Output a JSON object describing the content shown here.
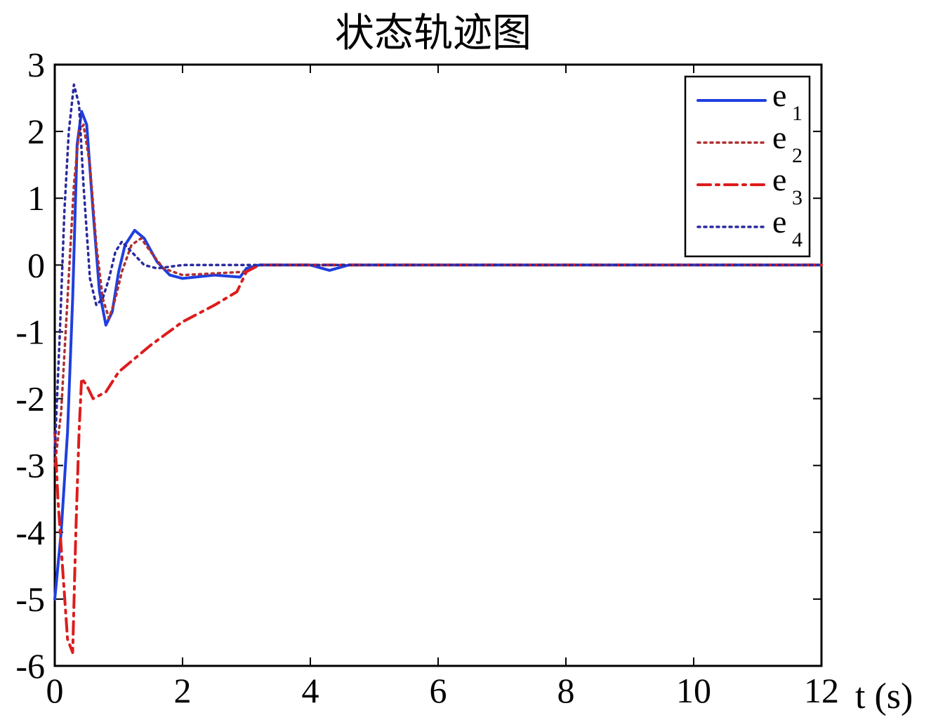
{
  "chart_data": {
    "type": "line",
    "title": "状态轨迹图",
    "xlabel": "t (s)",
    "ylabel": "",
    "xlim": [
      0,
      12
    ],
    "ylim": [
      -6,
      3
    ],
    "xticks": [
      0,
      2,
      4,
      6,
      8,
      10,
      12
    ],
    "yticks": [
      -6,
      -5,
      -4,
      -3,
      -2,
      -1,
      0,
      1,
      2,
      3
    ],
    "grid": false,
    "legend_position": "top-right",
    "series": [
      {
        "name": "e1",
        "color": "#1f3fe0",
        "style": "solid",
        "points": [
          [
            0,
            -5.0
          ],
          [
            0.1,
            -4.0
          ],
          [
            0.2,
            -2.5
          ],
          [
            0.28,
            -0.5
          ],
          [
            0.35,
            1.8
          ],
          [
            0.42,
            2.3
          ],
          [
            0.5,
            2.1
          ],
          [
            0.6,
            0.8
          ],
          [
            0.7,
            -0.4
          ],
          [
            0.8,
            -0.9
          ],
          [
            0.9,
            -0.7
          ],
          [
            1.0,
            -0.1
          ],
          [
            1.1,
            0.3
          ],
          [
            1.25,
            0.52
          ],
          [
            1.4,
            0.4
          ],
          [
            1.6,
            0.05
          ],
          [
            1.8,
            -0.15
          ],
          [
            2.0,
            -0.2
          ],
          [
            2.5,
            -0.15
          ],
          [
            2.9,
            -0.18
          ],
          [
            3.0,
            -0.05
          ],
          [
            3.2,
            0.0
          ],
          [
            4.0,
            0.0
          ],
          [
            4.3,
            -0.08
          ],
          [
            4.6,
            0.0
          ],
          [
            12,
            0.0
          ]
        ]
      },
      {
        "name": "e2",
        "color": "#b03030",
        "style": "dotted",
        "points": [
          [
            0,
            -3.0
          ],
          [
            0.1,
            -2.2
          ],
          [
            0.2,
            -0.5
          ],
          [
            0.3,
            1.2
          ],
          [
            0.38,
            2.0
          ],
          [
            0.45,
            2.1
          ],
          [
            0.55,
            1.5
          ],
          [
            0.65,
            0.3
          ],
          [
            0.75,
            -0.5
          ],
          [
            0.85,
            -0.8
          ],
          [
            0.95,
            -0.5
          ],
          [
            1.05,
            -0.1
          ],
          [
            1.2,
            0.3
          ],
          [
            1.35,
            0.4
          ],
          [
            1.5,
            0.2
          ],
          [
            1.7,
            -0.05
          ],
          [
            2.0,
            -0.15
          ],
          [
            3.0,
            -0.1
          ],
          [
            3.2,
            0.0
          ],
          [
            12,
            0.0
          ]
        ]
      },
      {
        "name": "e3",
        "color": "#dd1c1c",
        "style": "dashdot",
        "points": [
          [
            0,
            -2.5
          ],
          [
            0.05,
            -3.5
          ],
          [
            0.12,
            -4.5
          ],
          [
            0.2,
            -5.6
          ],
          [
            0.28,
            -5.8
          ],
          [
            0.33,
            -4.0
          ],
          [
            0.38,
            -2.5
          ],
          [
            0.42,
            -1.7
          ],
          [
            0.5,
            -1.8
          ],
          [
            0.6,
            -2.0
          ],
          [
            0.8,
            -1.9
          ],
          [
            1.0,
            -1.6
          ],
          [
            1.5,
            -1.2
          ],
          [
            2.0,
            -0.85
          ],
          [
            2.5,
            -0.6
          ],
          [
            2.85,
            -0.4
          ],
          [
            3.0,
            -0.1
          ],
          [
            3.2,
            0.0
          ],
          [
            12,
            0.0
          ]
        ]
      },
      {
        "name": "e4",
        "color": "#2a2aa0",
        "style": "dotted",
        "points": [
          [
            0,
            -2.8
          ],
          [
            0.08,
            -1.0
          ],
          [
            0.15,
            0.8
          ],
          [
            0.22,
            2.0
          ],
          [
            0.3,
            2.7
          ],
          [
            0.38,
            2.4
          ],
          [
            0.45,
            1.2
          ],
          [
            0.55,
            -0.2
          ],
          [
            0.65,
            -0.6
          ],
          [
            0.75,
            -0.5
          ],
          [
            0.85,
            -0.2
          ],
          [
            0.95,
            0.2
          ],
          [
            1.05,
            0.35
          ],
          [
            1.2,
            0.2
          ],
          [
            1.4,
            0.0
          ],
          [
            1.6,
            -0.05
          ],
          [
            2.0,
            0.0
          ],
          [
            12,
            0.0
          ]
        ]
      }
    ]
  },
  "legend": {
    "items": [
      {
        "base": "e",
        "sub": "1"
      },
      {
        "base": "e",
        "sub": "2"
      },
      {
        "base": "e",
        "sub": "3"
      },
      {
        "base": "e",
        "sub": "4"
      }
    ]
  }
}
